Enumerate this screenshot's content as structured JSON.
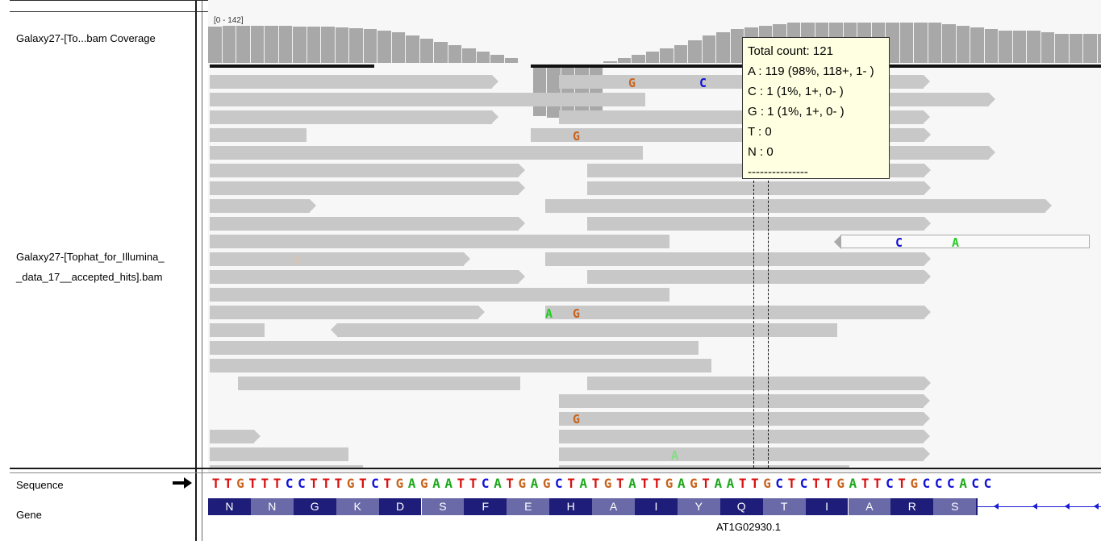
{
  "tracks": {
    "coverage_label": "Galaxy27-[To...bam Coverage",
    "coverage_range": "[0 - 142]",
    "alignment_label_line1": "Galaxy27-[Tophat_for_Illumina_",
    "alignment_label_line2": "_data_17__accepted_hits].bam",
    "sequence_label": "Sequence",
    "gene_label": "Gene"
  },
  "popup": {
    "total": "Total count: 121",
    "a": "A : 119 (98%, 118+, 1- )",
    "c": "C : 1 (1%, 1+, 0- )",
    "g": "G : 1 (1%, 1+, 0- )",
    "t": "T : 0",
    "n": "N : 0",
    "sep": "---------------"
  },
  "mismatches": [
    {
      "base": "G",
      "color": "#c8641e"
    },
    {
      "base": "C",
      "color": "#1010d8"
    },
    {
      "base": "G",
      "color": "#c8641e"
    },
    {
      "base": "C",
      "color": "#1010d8"
    },
    {
      "base": "A",
      "color": "#22cc22"
    },
    {
      "base": "G",
      "color": "#d8c4b4"
    },
    {
      "base": "A",
      "color": "#22cc22"
    },
    {
      "base": "G",
      "color": "#c8641e"
    },
    {
      "base": "G",
      "color": "#c8641e"
    },
    {
      "base": "A",
      "color": "#7fe07f"
    }
  ],
  "sequence": "TTGTTTCCTTTGTCTGAGAATTCATGAGCTATGTATTGAGTAATTGCTCTTGATTCTGCCCACC",
  "base_colors": {
    "A": "#1aa81a",
    "C": "#1010d8",
    "G": "#c8641e",
    "T": "#d81010"
  },
  "amino_acids": [
    "N",
    "N",
    "G",
    "K",
    "D",
    "S",
    "F",
    "E",
    "H",
    "A",
    "I",
    "Y",
    "Q",
    "T",
    "I",
    "A",
    "R",
    "S"
  ],
  "gene_name": "AT1G02930.1"
}
